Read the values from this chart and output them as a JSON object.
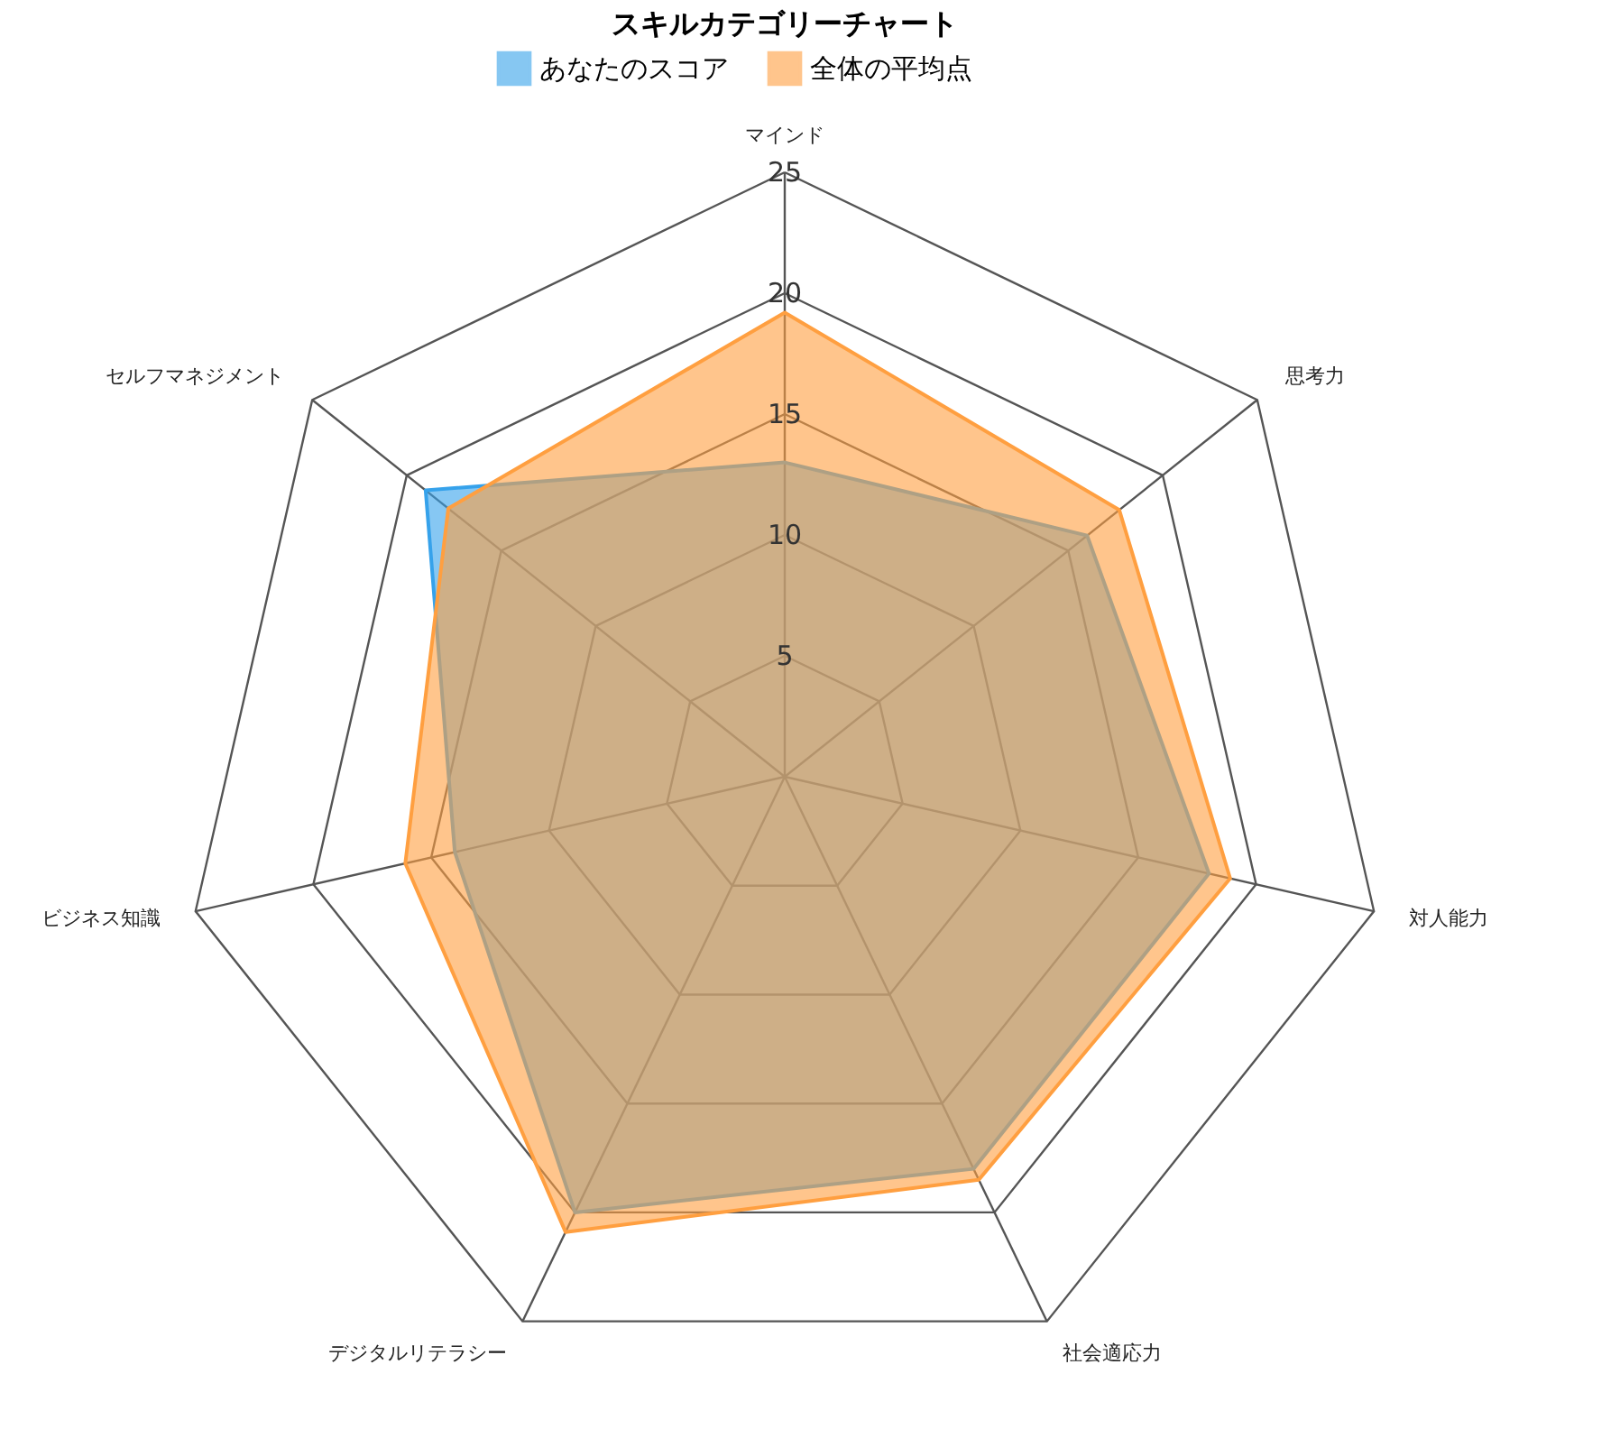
{
  "chart_data": {
    "type": "radar",
    "title": "スキルカテゴリーチャート",
    "categories": [
      "マインド",
      "思考力",
      "対人能力",
      "社会適応力",
      "デジタルリテラシー",
      "ビジネス知識",
      "セルフマネジメント"
    ],
    "series": [
      {
        "name": "あなたのスコア",
        "color": "#36a2eb",
        "values": [
          13,
          16,
          18,
          18,
          20,
          14,
          19
        ]
      },
      {
        "name": "全体の平均点",
        "color": "#ff9f40",
        "values": [
          19.2,
          17.7,
          18.9,
          18.5,
          20.9,
          16.1,
          17.8
        ]
      }
    ],
    "ylim": [
      0,
      25
    ],
    "yticks": [
      5,
      10,
      15,
      20,
      25
    ],
    "legend": "top",
    "grid": true
  }
}
